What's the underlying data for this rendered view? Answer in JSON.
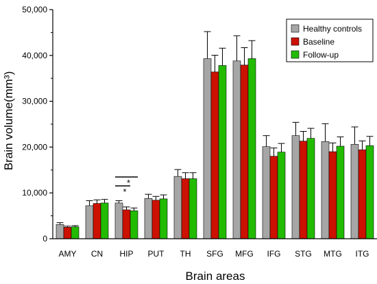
{
  "chart_data": {
    "type": "bar",
    "title": "",
    "xlabel": "Brain areas",
    "ylabel": "Brain volume(mm³)",
    "ylim": [
      0,
      50000
    ],
    "yticks": [
      0,
      10000,
      20000,
      30000,
      40000,
      50000
    ],
    "ytick_labels": [
      "0",
      "10,000",
      "20,000",
      "30,000",
      "40,000",
      "50,000"
    ],
    "categories": [
      "AMY",
      "CN",
      "HIP",
      "PUT",
      "TH",
      "SFG",
      "MFG",
      "IFG",
      "STG",
      "MTG",
      "ITG"
    ],
    "legend_position": "top-right",
    "series": [
      {
        "name": "Healthy controls",
        "color": "#a6a6a6",
        "values": [
          3100,
          7200,
          7800,
          8800,
          13600,
          39300,
          38800,
          20100,
          22500,
          21200,
          20600
        ],
        "errors": [
          400,
          1100,
          500,
          900,
          1500,
          5900,
          5500,
          2400,
          2900,
          3900,
          3800
        ]
      },
      {
        "name": "Baseline",
        "color": "#cc1100",
        "values": [
          2500,
          7700,
          6300,
          8400,
          13100,
          36400,
          37900,
          18000,
          21300,
          19000,
          19400
        ]
      },
      {
        "name": "Follow-up",
        "color": "#22bb00",
        "values": [
          2600,
          7800,
          6100,
          8700,
          13100,
          37800,
          39300,
          18900,
          21900,
          20200,
          20300
        ]
      }
    ],
    "annotations": [
      {
        "category": "HIP",
        "label": "*",
        "between": [
          "Healthy controls",
          "Follow-up"
        ]
      },
      {
        "category": "HIP",
        "label": "*",
        "between": [
          "Healthy controls",
          "Baseline"
        ]
      }
    ]
  }
}
